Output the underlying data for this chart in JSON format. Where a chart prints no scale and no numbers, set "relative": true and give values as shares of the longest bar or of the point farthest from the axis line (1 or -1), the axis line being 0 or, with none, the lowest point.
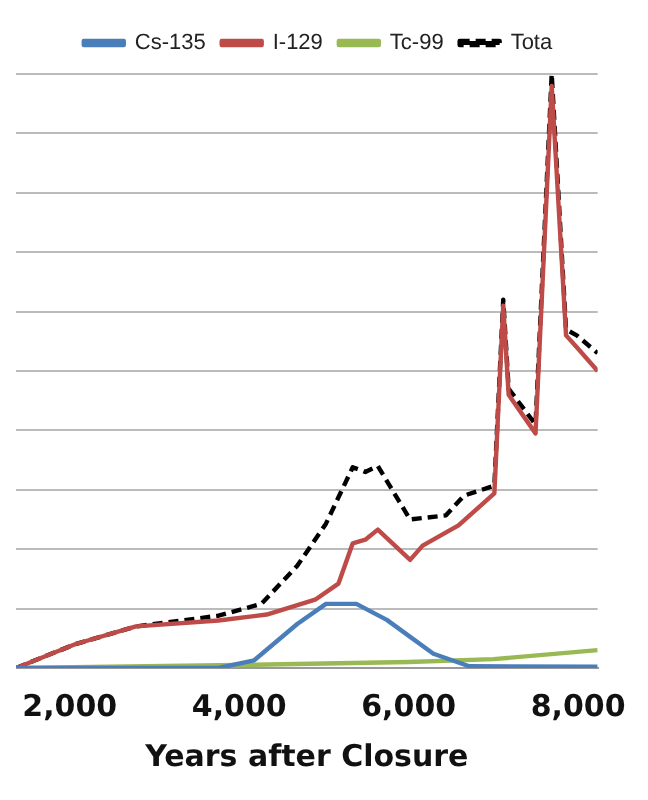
{
  "chart_data": {
    "type": "line",
    "xlabel": "Years after Closure",
    "relative": true,
    "xlim": [
      1366,
      8230
    ],
    "xticks": [
      {
        "value": 2000,
        "label": "2,000"
      },
      {
        "value": 4000,
        "label": "4,000"
      },
      {
        "value": 6000,
        "label": "6,000"
      },
      {
        "value": 8000,
        "label": "8,000"
      }
    ],
    "grid": "y",
    "legend": "top",
    "marker": "none",
    "series": [
      {
        "name": "Cs-135",
        "color": "#4a7ebb",
        "line_style": "solid",
        "x": [
          1366,
          3755,
          4177,
          4685,
          5024,
          5383,
          5742,
          6292,
          6715,
          8230
        ],
        "values": [
          0,
          0,
          0.013,
          0.074,
          0.108,
          0.108,
          0.081,
          0.024,
          0.003,
          0.002
        ]
      },
      {
        "name": "I-129",
        "color": "#be4b48",
        "line_style": "solid",
        "x": [
          1366,
          2063,
          2782,
          3755,
          4325,
          4896,
          5171,
          5340,
          5488,
          5636,
          6017,
          6165,
          6588,
          7011,
          7116,
          7180,
          7497,
          7688,
          7857,
          7984,
          8230
        ],
        "values": [
          0,
          0.04,
          0.07,
          0.08,
          0.09,
          0.115,
          0.142,
          0.21,
          0.216,
          0.233,
          0.182,
          0.206,
          0.24,
          0.294,
          0.61,
          0.46,
          0.395,
          0.98,
          0.56,
          0.54,
          0.5
        ]
      },
      {
        "name": "Tc-99",
        "color": "#98b954",
        "line_style": "solid",
        "x": [
          1366,
          4000,
          6000,
          7000,
          8230
        ],
        "values": [
          0,
          0.005,
          0.01,
          0.015,
          0.03
        ]
      },
      {
        "name": "Tota",
        "color": "#000000",
        "line_style": "dashed",
        "x": [
          1366,
          2063,
          2782,
          3755,
          4262,
          4685,
          5024,
          5340,
          5488,
          5636,
          6017,
          6440,
          6651,
          7011,
          7116,
          7180,
          7497,
          7688,
          7857,
          7984,
          8230
        ],
        "values": [
          0,
          0.04,
          0.07,
          0.088,
          0.108,
          0.172,
          0.243,
          0.338,
          0.33,
          0.34,
          0.25,
          0.257,
          0.29,
          0.307,
          0.62,
          0.47,
          0.41,
          1,
          0.57,
          0.56,
          0.53
        ]
      }
    ]
  }
}
